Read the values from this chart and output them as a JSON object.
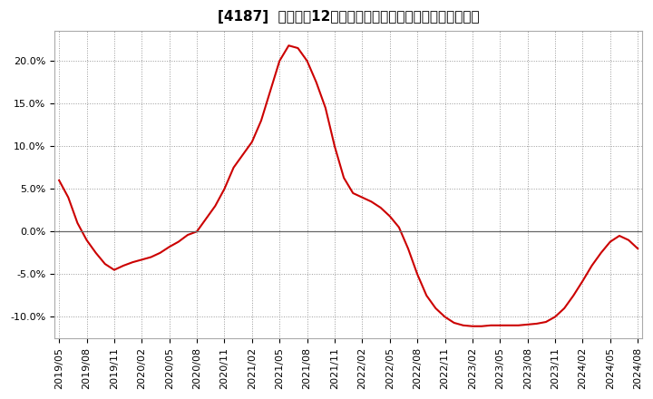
{
  "title": "[4187]  売上高の12か月移動合計の対前年同期増減率の推移",
  "line_color": "#cc0000",
  "background_color": "#ffffff",
  "plot_bg_color": "#ffffff",
  "grid_color": "#999999",
  "zero_line_color": "#666666",
  "ylim": [
    -0.125,
    0.235
  ],
  "yticks": [
    -0.1,
    -0.05,
    0.0,
    0.05,
    0.1,
    0.15,
    0.2
  ],
  "x_labels": [
    "2019/05",
    "2019/08",
    "2019/11",
    "2020/02",
    "2020/05",
    "2020/08",
    "2020/11",
    "2021/02",
    "2021/05",
    "2021/08",
    "2021/11",
    "2022/02",
    "2022/05",
    "2022/08",
    "2022/11",
    "2023/02",
    "2023/05",
    "2023/08",
    "2023/11",
    "2024/02",
    "2024/05",
    "2024/08"
  ],
  "x_values": [
    0,
    3,
    6,
    9,
    12,
    15,
    18,
    21,
    24,
    27,
    30,
    33,
    36,
    39,
    42,
    45,
    48,
    51,
    54,
    57,
    60,
    63
  ],
  "data_x": [
    0,
    1,
    2,
    3,
    4,
    5,
    6,
    7,
    8,
    9,
    10,
    11,
    12,
    13,
    14,
    15,
    16,
    17,
    18,
    19,
    20,
    21,
    22,
    23,
    24,
    25,
    26,
    27,
    28,
    29,
    30,
    31,
    32,
    33,
    34,
    35,
    36,
    37,
    38,
    39,
    40,
    41,
    42,
    43,
    44,
    45,
    46,
    47,
    48,
    49,
    50,
    51,
    52,
    53,
    54,
    55,
    56,
    57,
    58,
    59,
    60,
    61,
    62,
    63
  ],
  "data_y": [
    0.06,
    0.04,
    0.01,
    -0.01,
    -0.025,
    -0.038,
    -0.045,
    -0.04,
    -0.036,
    -0.033,
    -0.03,
    -0.025,
    -0.018,
    -0.012,
    -0.004,
    0.0,
    0.015,
    0.03,
    0.05,
    0.075,
    0.09,
    0.105,
    0.13,
    0.165,
    0.2,
    0.218,
    0.215,
    0.2,
    0.175,
    0.145,
    0.1,
    0.063,
    0.045,
    0.04,
    0.035,
    0.028,
    0.018,
    0.005,
    -0.02,
    -0.05,
    -0.075,
    -0.09,
    -0.1,
    -0.107,
    -0.11,
    -0.111,
    -0.111,
    -0.11,
    -0.11,
    -0.11,
    -0.11,
    -0.109,
    -0.108,
    -0.106,
    -0.1,
    -0.09,
    -0.075,
    -0.058,
    -0.04,
    -0.025,
    -0.012,
    -0.005,
    -0.01,
    -0.02
  ],
  "title_fontsize": 11,
  "tick_fontsize": 8,
  "line_width": 1.5
}
